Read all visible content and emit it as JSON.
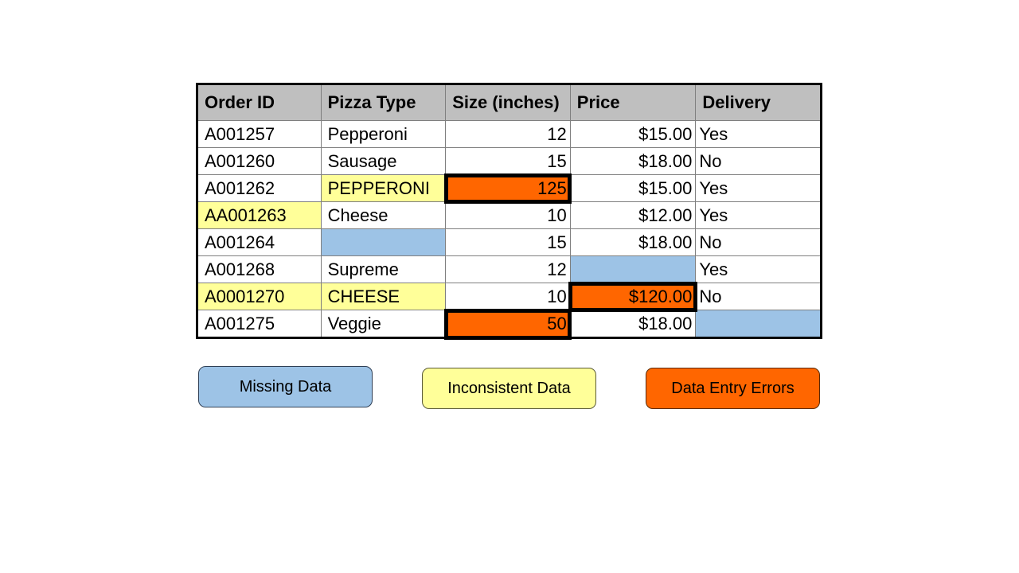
{
  "table": {
    "headers": [
      "Order ID",
      "Pizza Type",
      "Size (inches)",
      "Price",
      "Delivery"
    ],
    "rows": [
      {
        "order_id": "A001257",
        "pizza_type": "Pepperoni",
        "size": "12",
        "price": "$15.00",
        "delivery": "Yes"
      },
      {
        "order_id": "A001260",
        "pizza_type": "Sausage",
        "size": "15",
        "price": "$18.00",
        "delivery": "No"
      },
      {
        "order_id": "A001262",
        "pizza_type": "PEPPERONI",
        "size": "125",
        "price": "$15.00",
        "delivery": "Yes"
      },
      {
        "order_id": "AA001263",
        "pizza_type": "Cheese",
        "size": "10",
        "price": "$12.00",
        "delivery": "Yes"
      },
      {
        "order_id": "A001264",
        "pizza_type": "",
        "size": "15",
        "price": "$18.00",
        "delivery": "No"
      },
      {
        "order_id": "A001268",
        "pizza_type": "Supreme",
        "size": "12",
        "price": "",
        "delivery": "Yes"
      },
      {
        "order_id": "A0001270",
        "pizza_type": "CHEESE",
        "size": "10",
        "price": "$120.00",
        "delivery": "No"
      },
      {
        "order_id": "A001275",
        "pizza_type": "Veggie",
        "size": "50",
        "price": "$18.00",
        "delivery": ""
      }
    ]
  },
  "legend": {
    "missing": {
      "label": "Missing Data",
      "color": "#9dc3e6"
    },
    "inconsistent": {
      "label": "Inconsistent Data",
      "color": "#ffff99"
    },
    "errors": {
      "label": "Data Entry Errors",
      "color": "#ff6600"
    }
  }
}
